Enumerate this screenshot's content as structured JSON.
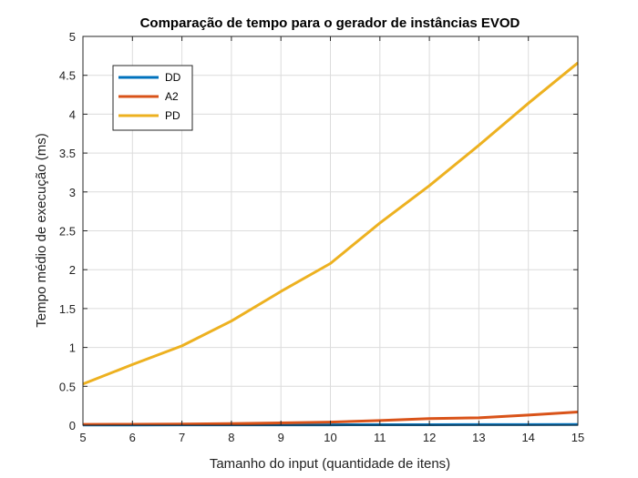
{
  "chart_data": {
    "type": "line",
    "title": "Comparação de tempo para o gerador de instâncias EVOD",
    "xlabel": "Tamanho do input (quantidade de itens)",
    "ylabel": "Tempo médio de execução (ms)",
    "xlim": [
      5,
      15
    ],
    "ylim": [
      0,
      5
    ],
    "xticks": [
      5,
      6,
      7,
      8,
      9,
      10,
      11,
      12,
      13,
      14,
      15
    ],
    "yticks": [
      0,
      0.5,
      1,
      1.5,
      2,
      2.5,
      3,
      3.5,
      4,
      4.5,
      5
    ],
    "grid": true,
    "legend_position": "top-left",
    "x": [
      5,
      6,
      7,
      8,
      9,
      10,
      11,
      12,
      13,
      14,
      15
    ],
    "series": [
      {
        "name": "DD",
        "color": "#0072BD",
        "values": [
          0.003,
          0.003,
          0.004,
          0.004,
          0.005,
          0.005,
          0.006,
          0.006,
          0.007,
          0.008,
          0.009
        ]
      },
      {
        "name": "A2",
        "color": "#D95319",
        "values": [
          0.01,
          0.012,
          0.015,
          0.02,
          0.03,
          0.04,
          0.06,
          0.085,
          0.095,
          0.13,
          0.17
        ]
      },
      {
        "name": "PD",
        "color": "#EDB120",
        "values": [
          0.53,
          0.78,
          1.02,
          1.34,
          1.72,
          2.08,
          2.6,
          3.08,
          3.6,
          4.14,
          4.66
        ]
      }
    ]
  }
}
